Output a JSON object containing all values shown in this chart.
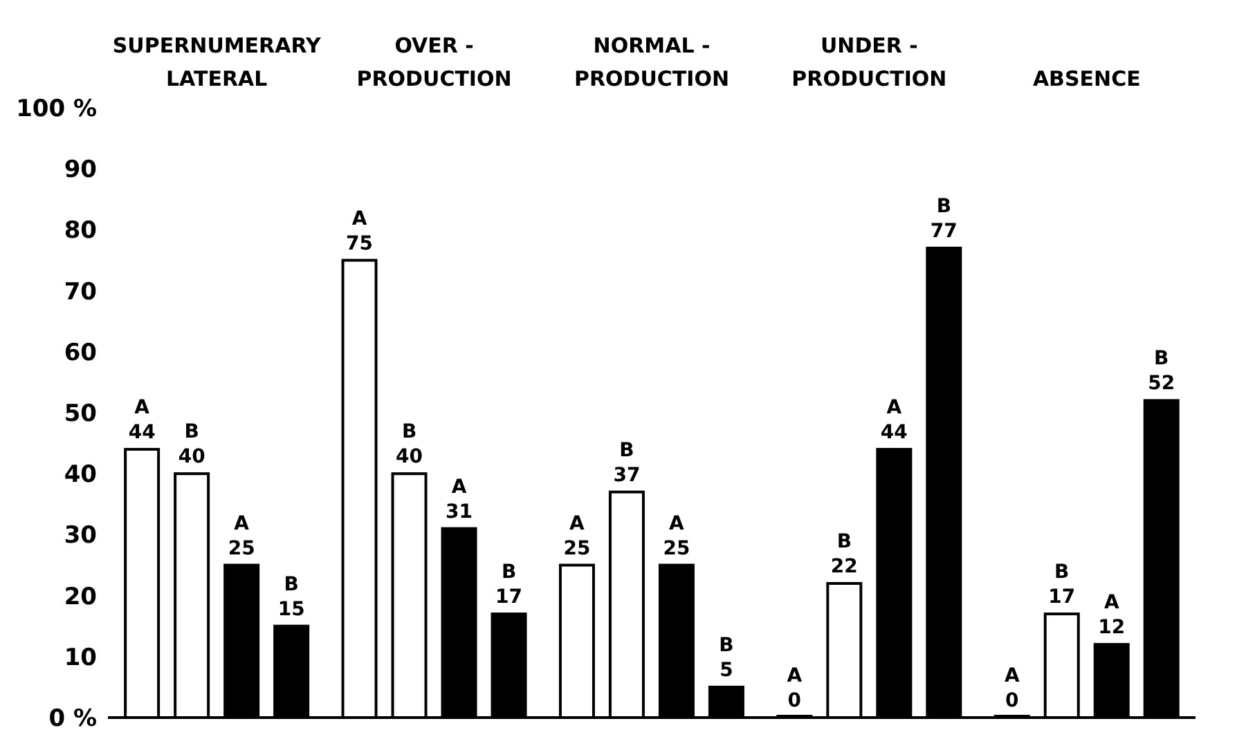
{
  "chart_data": {
    "type": "bar",
    "categories": [
      "SUPERNUMERARY\nLATERAL",
      "OVER -\nPRODUCTION",
      "NORMAL -\nPRODUCTION",
      "UNDER -\nPRODUCTION",
      "ABSENCE"
    ],
    "series": [
      {
        "name": "A",
        "color": "#ffffff",
        "values": [
          44,
          75,
          25,
          0,
          0
        ]
      },
      {
        "name": "B",
        "color": "#ffffff",
        "values": [
          40,
          40,
          37,
          22,
          17
        ]
      },
      {
        "name": "A",
        "color": "#000000",
        "values": [
          25,
          31,
          25,
          44,
          12
        ]
      },
      {
        "name": "B",
        "color": "#000000",
        "values": [
          15,
          17,
          5,
          77,
          52
        ]
      }
    ],
    "ylim": [
      0,
      100
    ],
    "yticks": [
      {
        "value": 0,
        "label": "0 %"
      },
      10,
      20,
      30,
      40,
      50,
      60,
      70,
      80,
      90,
      {
        "value": 100,
        "label": "100 %"
      }
    ],
    "data_labels": true,
    "grid": false,
    "legend": false
  }
}
